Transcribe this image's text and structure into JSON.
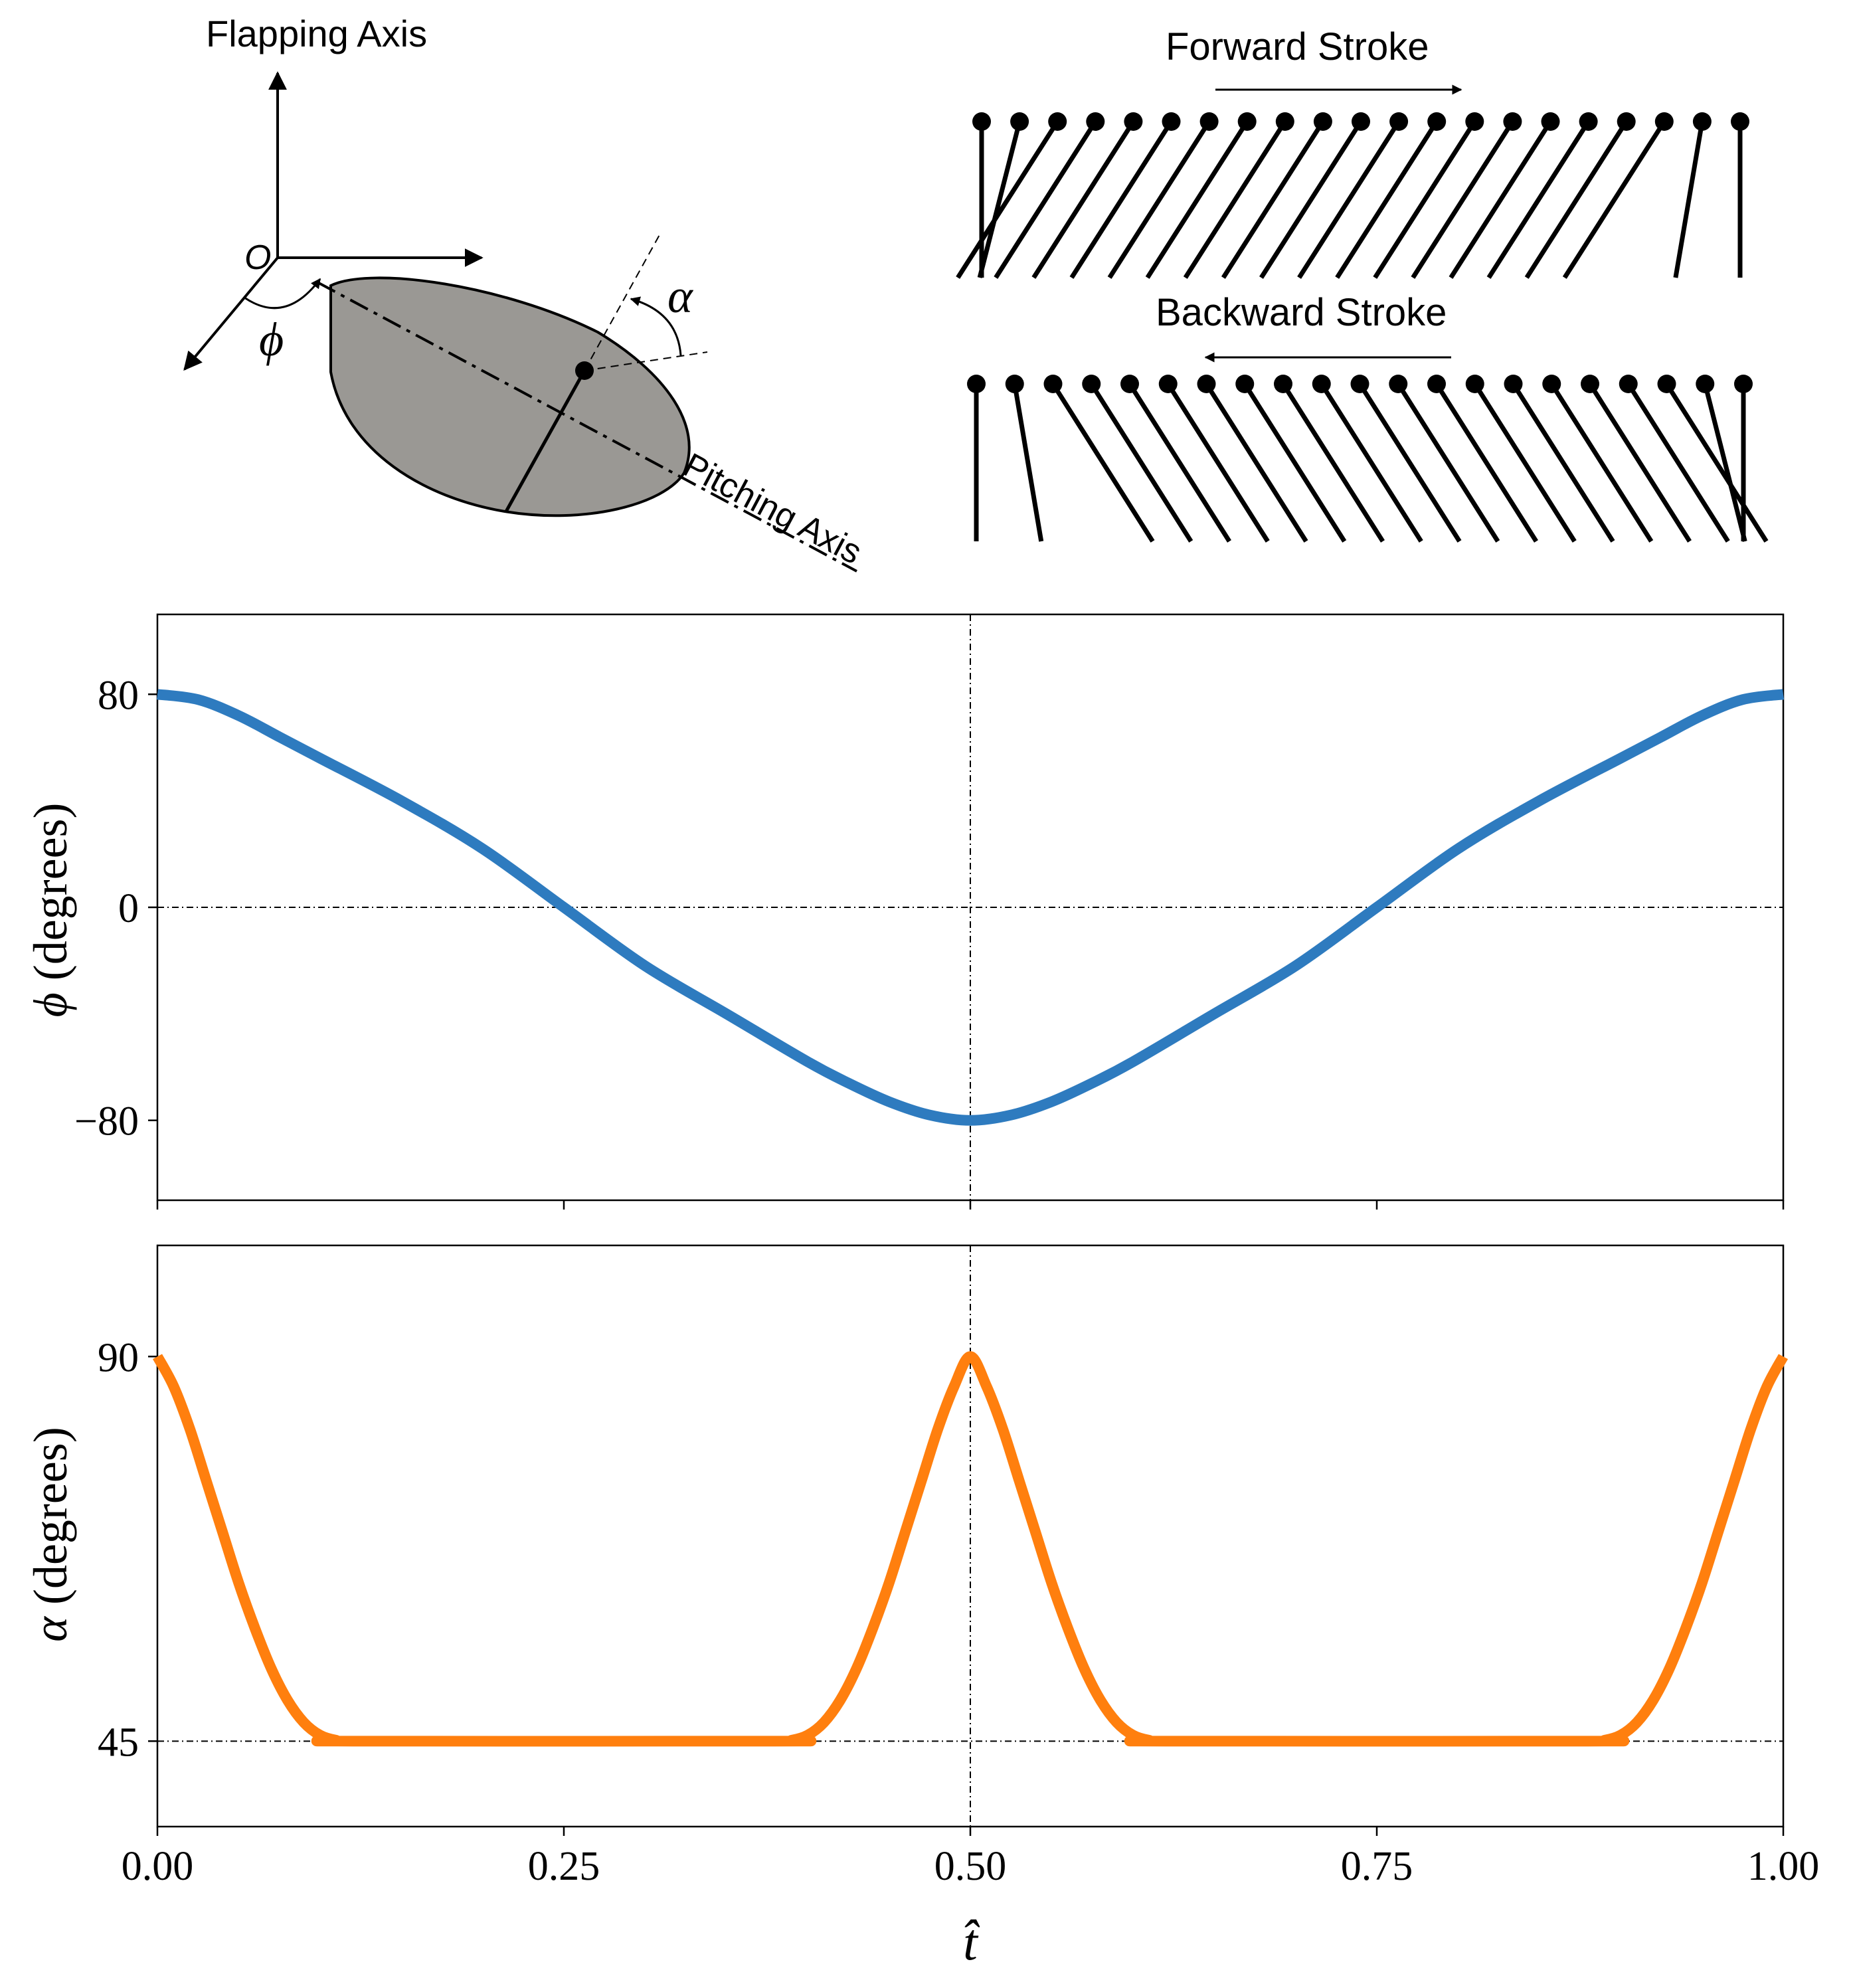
{
  "diagram": {
    "flapping_axis_label": "Flapping Axis",
    "origin_label": "O",
    "phi_symbol": "ϕ",
    "alpha_symbol": "α",
    "pitching_axis_label": "Pitching Axis",
    "forward_stroke_label": "Forward Stroke",
    "backward_stroke_label": "Backward Stroke"
  },
  "colors": {
    "phi_line": "#2e7bbf",
    "alpha_line": "#ff7f0e",
    "wing_fill": "#9a9894",
    "axes": "#000000"
  },
  "chart_data": [
    {
      "type": "line",
      "name": "flapping-angle",
      "ylabel_symbol": "ϕ",
      "ylabel_text": " (degrees)",
      "xlim": [
        0,
        1
      ],
      "ylim": [
        -110,
        110
      ],
      "yticks": [
        80,
        0,
        -80
      ],
      "ytick_labels": [
        "80",
        "0",
        "−80"
      ],
      "xticks": [
        0,
        0.25,
        0.5,
        0.75,
        1.0
      ],
      "hline": 0,
      "vline": 0.5,
      "series": [
        {
          "name": "phi",
          "x": [
            0,
            0.025,
            0.05,
            0.075,
            0.1,
            0.15,
            0.2,
            0.25,
            0.3,
            0.35,
            0.4,
            0.425,
            0.45,
            0.475,
            0.5,
            0.525,
            0.55,
            0.575,
            0.6,
            0.65,
            0.7,
            0.75,
            0.8,
            0.85,
            0.9,
            0.925,
            0.95,
            0.975,
            1.0
          ],
          "values": [
            80,
            78,
            72,
            64,
            56,
            40,
            22,
            0,
            -22,
            -40,
            -58,
            -66,
            -73,
            -78,
            -80,
            -78,
            -73,
            -66,
            -58,
            -40,
            -22,
            0,
            22,
            40,
            56,
            64,
            72,
            78,
            80
          ]
        }
      ]
    },
    {
      "type": "line",
      "name": "pitching-angle",
      "ylabel_symbol": "α",
      "ylabel_text": " (degrees)",
      "xlim": [
        0,
        1
      ],
      "ylim": [
        35,
        103
      ],
      "yticks": [
        90,
        45
      ],
      "ytick_labels": [
        "90",
        "45"
      ],
      "xticks": [
        0,
        0.25,
        0.5,
        0.75,
        1.0
      ],
      "xtick_labels": [
        "0.00",
        "0.25",
        "0.50",
        "0.75",
        "1.00"
      ],
      "xlabel": "t̂",
      "hline": 45,
      "vline": 0.5,
      "series": [
        {
          "name": "alpha",
          "x": [
            0,
            0.01,
            0.02,
            0.03,
            0.04,
            0.05,
            0.06,
            0.07,
            0.08,
            0.09,
            0.1,
            0.11,
            0.12,
            0.38,
            0.39,
            0.4,
            0.41,
            0.42,
            0.43,
            0.44,
            0.45,
            0.46,
            0.47,
            0.48,
            0.49,
            0.5,
            0.51,
            0.52,
            0.53,
            0.54,
            0.55,
            0.56,
            0.57,
            0.58,
            0.59,
            0.6,
            0.61,
            0.62,
            0.88,
            0.89,
            0.9,
            0.91,
            0.92,
            0.93,
            0.94,
            0.95,
            0.96,
            0.97,
            0.98,
            0.99,
            1.0
          ],
          "values": [
            90,
            86.5,
            81.5,
            75.5,
            69.5,
            63.5,
            58.2,
            53.5,
            49.8,
            47.2,
            45.7,
            45.1,
            45,
            45,
            45.1,
            45.7,
            47.2,
            49.8,
            53.5,
            58.2,
            63.5,
            69.5,
            75.5,
            81.5,
            86.5,
            90,
            86.5,
            81.5,
            75.5,
            69.5,
            63.5,
            58.2,
            53.5,
            49.8,
            47.2,
            45.7,
            45.1,
            45,
            45,
            45.1,
            45.7,
            47.2,
            49.8,
            53.5,
            58.2,
            63.5,
            69.5,
            75.5,
            81.5,
            86.5,
            90
          ]
        }
      ]
    }
  ]
}
